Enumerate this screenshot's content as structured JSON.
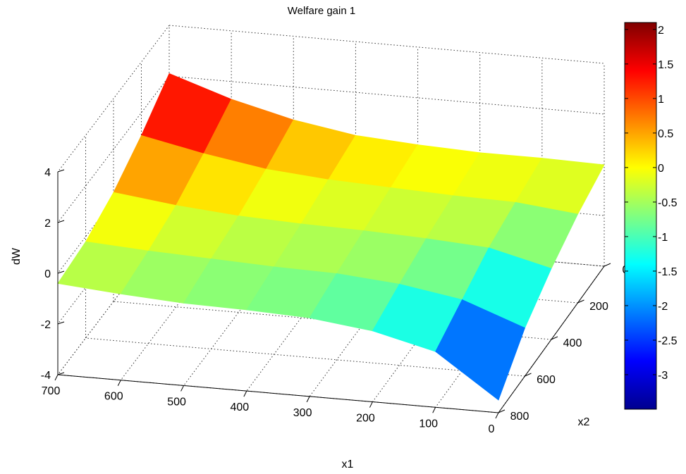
{
  "chart_data": {
    "type": "surface",
    "title": "Welfare gain 1",
    "xlabel": "x1",
    "ylabel": "x2",
    "zlabel": "dW",
    "xlim": [
      0,
      700
    ],
    "ylim": [
      0,
      800
    ],
    "zlim": [
      -4,
      4
    ],
    "x_ticks": [
      "0",
      "100",
      "200",
      "300",
      "400",
      "500",
      "600",
      "700"
    ],
    "y_ticks": [
      "0",
      "200",
      "400",
      "600",
      "800"
    ],
    "z_ticks": [
      "-4",
      "-2",
      "0",
      "2",
      "4"
    ],
    "grid": true,
    "colormap": "jet",
    "colorbar": {
      "range": [
        -3.5,
        2.1
      ],
      "ticks": [
        "2",
        "1.5",
        "1",
        "0.5",
        "0",
        "-0.5",
        "-1",
        "-1.5",
        "-2",
        "-2.5",
        "-3"
      ]
    },
    "x1": [
      0,
      100,
      200,
      300,
      400,
      500,
      600,
      700
    ],
    "x2": [
      0,
      200,
      400,
      600,
      800
    ],
    "dW": [
      [
        0.0,
        0.05,
        0.05,
        0.15,
        0.3,
        0.7,
        1.3,
        2.1
      ],
      [
        -0.5,
        -0.25,
        -0.2,
        -0.1,
        0.0,
        0.2,
        0.6,
        1.1
      ],
      [
        -1.2,
        -0.6,
        -0.45,
        -0.35,
        -0.3,
        -0.2,
        0.0,
        0.3
      ],
      [
        -2.1,
        -1.2,
        -0.8,
        -0.6,
        -0.55,
        -0.45,
        -0.35,
        -0.2
      ],
      [
        -3.5,
        -1.8,
        -1.2,
        -0.9,
        -0.8,
        -0.75,
        -0.6,
        -0.4
      ]
    ]
  }
}
